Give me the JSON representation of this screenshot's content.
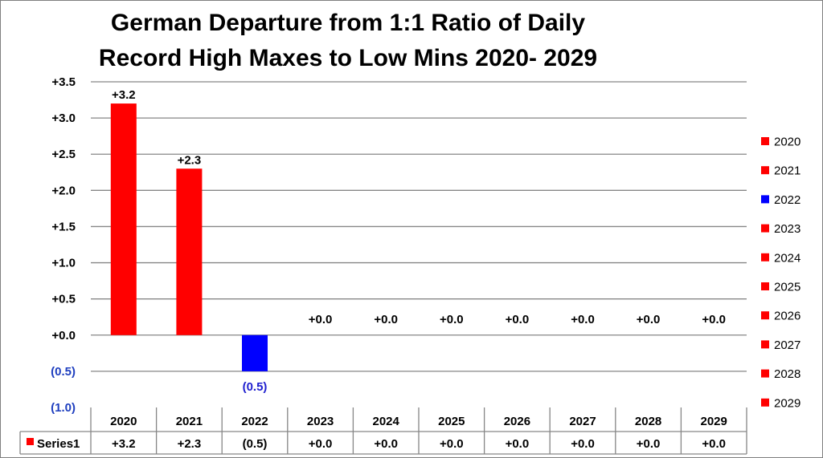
{
  "chart_data": {
    "type": "bar",
    "title_lines": [
      "German Departure from 1:1 Ratio of Daily",
      "Record High Maxes to Low Mins 2020- 2029"
    ],
    "categories": [
      "2020",
      "2021",
      "2022",
      "2023",
      "2024",
      "2025",
      "2026",
      "2027",
      "2028",
      "2029"
    ],
    "series": [
      {
        "name": "Series1",
        "values": [
          3.2,
          2.3,
          -0.5,
          0.0,
          0.0,
          0.0,
          0.0,
          0.0,
          0.0,
          0.0
        ]
      }
    ],
    "data_labels": [
      "+3.2",
      "+2.3",
      "(0.5)",
      "+0.0",
      "+0.0",
      "+0.0",
      "+0.0",
      "+0.0",
      "+0.0",
      "+0.0"
    ],
    "y_ticks": [
      3.5,
      3.0,
      2.5,
      2.0,
      1.5,
      1.0,
      0.5,
      0.0,
      -0.5,
      -1.0
    ],
    "y_tick_labels": [
      "+3.5",
      "+3.0",
      "+2.5",
      "+2.0",
      "+1.5",
      "+1.0",
      "+0.5",
      "+0.0",
      "(0.5)",
      "(1.0)"
    ],
    "ylim": [
      -1.0,
      3.5
    ],
    "grid": true,
    "legend_position": "right",
    "legend_entries": [
      "2020",
      "2021",
      "2022",
      "2023",
      "2024",
      "2025",
      "2026",
      "2027",
      "2028",
      "2029"
    ],
    "data_table": {
      "row_label": "Series1",
      "values": [
        "+3.2",
        "+2.3",
        "(0.5)",
        "+0.0",
        "+0.0",
        "+0.0",
        "+0.0",
        "+0.0",
        "+0.0",
        "+0.0"
      ]
    },
    "colors": {
      "positive": "#ff0000",
      "negative": "#0000ff",
      "negative_label": "#1f1fcf",
      "grid": "#868686",
      "table_border": "#868686"
    }
  }
}
